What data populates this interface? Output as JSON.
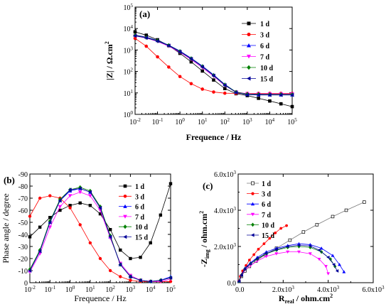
{
  "chart_data": [
    {
      "panel": "(a)",
      "type": "scatter",
      "xscale": "log",
      "yscale": "log",
      "xlim": [
        0.01,
        100000
      ],
      "ylim": [
        1,
        100000
      ],
      "xticks": [
        0.01,
        0.1,
        1,
        10,
        100,
        1000,
        10000,
        100000
      ],
      "yticks": [
        1,
        10,
        100,
        1000,
        10000,
        100000
      ],
      "xtick_labels": [
        {
          "base": "10",
          "exp": "-2"
        },
        {
          "base": "10",
          "exp": "-1"
        },
        {
          "base": "10",
          "exp": "0"
        },
        {
          "base": "10",
          "exp": "1"
        },
        {
          "base": "10",
          "exp": "2"
        },
        {
          "base": "10",
          "exp": "3"
        },
        {
          "base": "10",
          "exp": "4"
        },
        {
          "base": "10",
          "exp": "5"
        }
      ],
      "ytick_labels": [
        {
          "base": "10",
          "exp": "0"
        },
        {
          "base": "10",
          "exp": "1"
        },
        {
          "base": "10",
          "exp": "2"
        },
        {
          "base": "10",
          "exp": "3"
        },
        {
          "base": "10",
          "exp": "4"
        },
        {
          "base": "10",
          "exp": "5"
        }
      ],
      "xlabel": "Frequence / Hz",
      "ylabel": {
        "main": "|Z| / Ω.cm",
        "sup": "2"
      },
      "legend_position": "upper-right",
      "x": [
        0.01,
        0.0316,
        0.1,
        0.316,
        1,
        3.16,
        10,
        31.6,
        100,
        316,
        1000,
        3160,
        10000,
        31600,
        100000
      ],
      "series": [
        {
          "name": "1 d",
          "marker": "square",
          "color": "#000000",
          "values": [
            7000,
            4900,
            3000,
            1600,
            700,
            280,
            105,
            40,
            16,
            9.2,
            7.5,
            5.6,
            4.2,
            3.1,
            2.3
          ]
        },
        {
          "name": "3 d",
          "marker": "circle",
          "color": "#ff0000",
          "values": [
            3500,
            1500,
            480,
            160,
            58,
            27,
            15,
            11,
            9.7,
            9.5,
            9.5,
            9.5,
            9.5,
            9.5,
            9.5
          ]
        },
        {
          "name": "6 d",
          "marker": "triangle-up",
          "color": "#0000ff",
          "values": [
            5000,
            4000,
            2800,
            1700,
            900,
            420,
            180,
            70,
            25,
            11,
            8.5,
            8.2,
            8.1,
            8.1,
            8.1
          ]
        },
        {
          "name": "7 d",
          "marker": "triangle-down",
          "color": "#ff00ff",
          "values": [
            4500,
            3600,
            2500,
            1500,
            780,
            360,
            150,
            60,
            22,
            11,
            9.2,
            9.0,
            9.0,
            9.0,
            9.0
          ]
        },
        {
          "name": "10 d",
          "marker": "diamond",
          "color": "#008000",
          "values": [
            4800,
            3800,
            2700,
            1650,
            860,
            400,
            170,
            66,
            24,
            11,
            8.8,
            8.6,
            8.5,
            8.5,
            8.5
          ]
        },
        {
          "name": "15 d",
          "marker": "triangle-left",
          "color": "#000099",
          "values": [
            4600,
            3700,
            2600,
            1600,
            830,
            390,
            165,
            64,
            23,
            10.5,
            8.2,
            8.0,
            8.0,
            8.0,
            8.0
          ]
        }
      ]
    },
    {
      "panel": "(b)",
      "type": "scatter",
      "xscale": "log",
      "yscale": "linear",
      "xlim": [
        0.01,
        100000
      ],
      "ylim": [
        0,
        -90
      ],
      "xticks": [
        0.01,
        0.1,
        1,
        10,
        100,
        1000,
        10000,
        100000
      ],
      "yticks": [
        0,
        -10,
        -20,
        -30,
        -40,
        -50,
        -60,
        -70,
        -80,
        -90
      ],
      "xtick_labels": [
        {
          "base": "10",
          "exp": "-2"
        },
        {
          "base": "10",
          "exp": "-1"
        },
        {
          "base": "10",
          "exp": "0"
        },
        {
          "base": "10",
          "exp": "1"
        },
        {
          "base": "10",
          "exp": "2"
        },
        {
          "base": "10",
          "exp": "3"
        },
        {
          "base": "10",
          "exp": "4"
        },
        {
          "base": "10",
          "exp": "5"
        }
      ],
      "ytick_labels": [
        "0",
        "-10",
        "-20",
        "-30",
        "-40",
        "-50",
        "-60",
        "-70",
        "-80",
        "-90"
      ],
      "xlabel": "Frequence / Hz",
      "ylabel": "Phase angle / degree",
      "legend_position": "upper-right",
      "x": [
        0.01,
        0.0316,
        0.1,
        0.316,
        1,
        3.16,
        10,
        31.6,
        100,
        316,
        1000,
        3160,
        10000,
        31600,
        100000
      ],
      "series": [
        {
          "name": "1 d",
          "marker": "square",
          "color": "#000000",
          "values": [
            -38,
            -46,
            -54,
            -60,
            -64,
            -66,
            -64,
            -57,
            -44,
            -27,
            -20,
            -21,
            -33,
            -56,
            -82
          ]
        },
        {
          "name": "3 d",
          "marker": "circle",
          "color": "#ff0000",
          "values": [
            -55,
            -70,
            -72,
            -70,
            -62,
            -48,
            -33,
            -20,
            -10,
            -5,
            -2,
            -1,
            -1,
            -1,
            -1
          ]
        },
        {
          "name": "6 d",
          "marker": "triangle-up",
          "color": "#0000ff",
          "values": [
            -10,
            -26,
            -50,
            -68,
            -76,
            -78,
            -75,
            -62,
            -38,
            -15,
            -5,
            -2,
            -1,
            -2,
            -5
          ]
        },
        {
          "name": "7 d",
          "marker": "triangle-down",
          "color": "#ff00ff",
          "values": [
            -9,
            -24,
            -46,
            -63,
            -72,
            -75,
            -72,
            -60,
            -37,
            -16,
            -6,
            -2,
            -1,
            -1,
            -3
          ]
        },
        {
          "name": "10 d",
          "marker": "diamond",
          "color": "#008000",
          "values": [
            -11,
            -27,
            -51,
            -69,
            -77,
            -79,
            -76,
            -63,
            -39,
            -15,
            -5,
            -2,
            -1,
            -2,
            -4
          ]
        },
        {
          "name": "15 d",
          "marker": "triangle-left",
          "color": "#000099",
          "values": [
            -10,
            -26,
            -50,
            -68,
            -77,
            -78,
            -75,
            -62,
            -38,
            -15,
            -5,
            -2,
            -1,
            -2,
            -4
          ]
        }
      ]
    },
    {
      "panel": "(c)",
      "type": "line",
      "xscale": "linear",
      "yscale": "linear",
      "xlim": [
        0,
        6000
      ],
      "ylim": [
        0,
        6000
      ],
      "xticks": [
        0,
        2000,
        4000,
        6000
      ],
      "yticks": [
        0,
        2000,
        4000,
        6000
      ],
      "xtick_labels": [
        {
          "base": "0.0",
          "exp": ""
        },
        {
          "base": "2.0x10",
          "exp": "3"
        },
        {
          "base": "4.0x10",
          "exp": "3"
        },
        {
          "base": "6.0x10",
          "exp": "3"
        }
      ],
      "ytick_labels": [
        {
          "base": "0.0",
          "exp": ""
        },
        {
          "base": "2.0x10",
          "exp": "3"
        },
        {
          "base": "4.0x10",
          "exp": "3"
        },
        {
          "base": "6.0x10",
          "exp": "3"
        }
      ],
      "xlabel": {
        "main": "R",
        "sub": "real",
        "rest": " / ohm.cm",
        "sup": "2"
      },
      "ylabel": {
        "main": "-Z",
        "sub": "img",
        "rest": " / ohm.cm",
        "sup": "2"
      },
      "legend_position": "upper-left",
      "series": [
        {
          "name": "1 d",
          "marker": "square",
          "color": "#000000",
          "x": [
            40,
            150,
            300,
            500,
            800,
            1200,
            1700,
            2300,
            2900,
            3500,
            4200,
            4800,
            5600
          ],
          "y": [
            70,
            350,
            650,
            900,
            1200,
            1550,
            1900,
            2350,
            2800,
            3200,
            3650,
            4000,
            4450
          ]
        },
        {
          "name": "3 d",
          "marker": "circle",
          "color": "#ff0000",
          "x": [
            30,
            100,
            200,
            350,
            500,
            700,
            900,
            1150,
            1400,
            1650,
            1900,
            2150
          ],
          "y": [
            90,
            350,
            650,
            950,
            1250,
            1550,
            1850,
            2150,
            2450,
            2750,
            3000,
            3150
          ]
        },
        {
          "name": "6 d",
          "marker": "triangle-up",
          "color": "#0000ff",
          "x": [
            40,
            150,
            300,
            550,
            850,
            1250,
            1700,
            2200,
            2700,
            3200,
            3700,
            4200,
            4500,
            4700
          ],
          "y": [
            80,
            450,
            800,
            1100,
            1400,
            1700,
            1900,
            2050,
            2150,
            2100,
            1900,
            1500,
            1000,
            600
          ]
        },
        {
          "name": "7 d",
          "marker": "triangle-down",
          "color": "#ff00ff",
          "x": [
            40,
            150,
            300,
            550,
            850,
            1250,
            1700,
            2200,
            2700,
            3200,
            3600,
            3900,
            4000
          ],
          "y": [
            80,
            400,
            700,
            950,
            1200,
            1450,
            1600,
            1700,
            1700,
            1600,
            1300,
            900,
            500
          ]
        },
        {
          "name": "10 d",
          "marker": "diamond",
          "color": "#008000",
          "x": [
            40,
            150,
            300,
            550,
            850,
            1250,
            1700,
            2200,
            2700,
            3200,
            3700,
            4100,
            4300
          ],
          "y": [
            80,
            420,
            750,
            1050,
            1300,
            1600,
            1800,
            1950,
            2000,
            1950,
            1700,
            1300,
            900
          ]
        },
        {
          "name": "15 d",
          "marker": "triangle-left",
          "color": "#000099",
          "x": [
            40,
            150,
            300,
            550,
            850,
            1250,
            1700,
            2200,
            2700,
            3200,
            3600,
            4000,
            4250,
            4400
          ],
          "y": [
            80,
            420,
            760,
            1060,
            1340,
            1620,
            1830,
            2000,
            2070,
            2030,
            1800,
            1400,
            1000,
            650
          ]
        }
      ]
    }
  ]
}
